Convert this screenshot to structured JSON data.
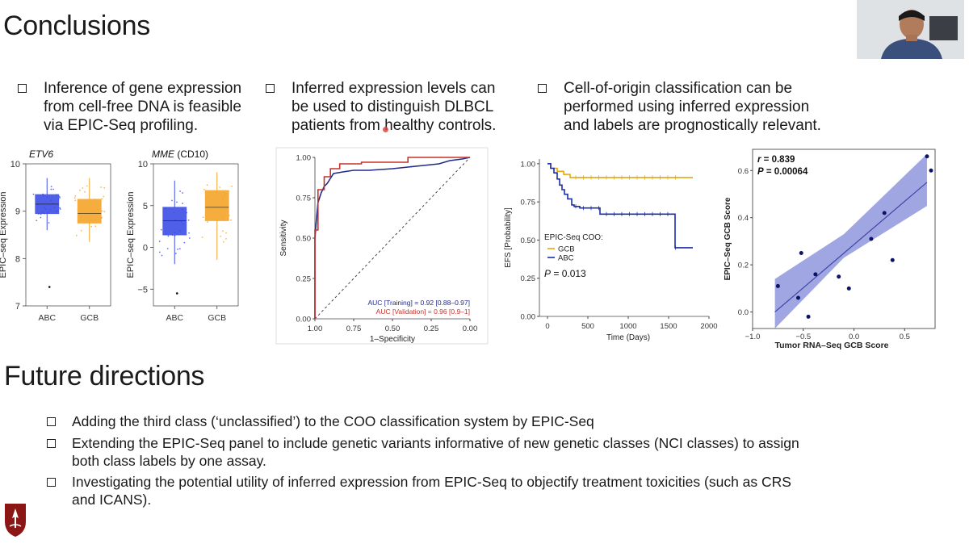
{
  "title": "Conclusions",
  "top_bullets": [
    "Inference of gene expression from cell-free DNA is feasible via EPIC-Seq profiling.",
    "Inferred expression levels can be used to distinguish DLBCL patients from healthy controls.",
    "Cell-of-origin classification can be performed using inferred expression and labels are prognostically relevant."
  ],
  "top_bullet_lines": [
    [
      "Inference of gene expression",
      "from cell-free DNA is feasible",
      "via EPIC-Seq profiling."
    ],
    [
      "Inferred expression levels can",
      "be used to distinguish DLBCL",
      "patients from healthy controls."
    ],
    [
      "Cell-of-origin classification can be",
      "performed using inferred expression",
      "and labels are prognostically relevant."
    ]
  ],
  "future_title": "Future directions",
  "future_bullets": [
    [
      "Adding the third class (‘unclassified’) to the COO classification system by EPIC-Seq"
    ],
    [
      "Extending the EPIC-Seq panel to include genetic variants informative of new genetic classes (NCI classes) to assign",
      "both class labels by one assay."
    ],
    [
      "Investigating the potential utility of inferred expression from EPIC-Seq to objectify treatment toxicities (such as CRS",
      "and ICANS)."
    ]
  ],
  "chart_data": [
    {
      "type": "box",
      "title_gene": "ETV6",
      "title_suffix": "",
      "ylabel": "EPIC–seq Expression",
      "categories": [
        "ABC",
        "GCB"
      ],
      "yticks": [
        7,
        8,
        9,
        10
      ],
      "ylim": [
        7,
        10
      ],
      "boxes": [
        {
          "name": "ABC",
          "color": "#3d4ee6",
          "q1": 8.95,
          "median": 9.15,
          "q3": 9.35,
          "wlo": 8.6,
          "whi": 9.7,
          "outliers": [
            7.4
          ]
        },
        {
          "name": "GCB",
          "color": "#f5a62a",
          "q1": 8.75,
          "median": 8.95,
          "q3": 9.25,
          "wlo": 8.35,
          "whi": 9.7,
          "outliers": []
        }
      ]
    },
    {
      "type": "box",
      "title_gene": "MME",
      "title_suffix": " (CD10)",
      "ylabel": "EPIC–seq Expression",
      "categories": [
        "ABC",
        "GCB"
      ],
      "yticks": [
        -5,
        0,
        5,
        10
      ],
      "ylim": [
        -7,
        10
      ],
      "boxes": [
        {
          "name": "ABC",
          "color": "#3d4ee6",
          "q1": 1.5,
          "median": 3.2,
          "q3": 4.8,
          "wlo": -2,
          "whi": 8,
          "outliers": [
            -5.5
          ]
        },
        {
          "name": "GCB",
          "color": "#f5a62a",
          "q1": 3.2,
          "median": 4.8,
          "q3": 6.8,
          "wlo": -1.5,
          "whi": 9,
          "outliers": []
        }
      ]
    },
    {
      "type": "roc",
      "xlabel": "1–Specificity",
      "ylabel": "Sensitivity",
      "xticks": [
        "1.00",
        "0.75",
        "0.50",
        "0.25",
        "0.00"
      ],
      "yticks": [
        "0.00",
        "0.25",
        "0.50",
        "0.75",
        "1.00"
      ],
      "series": [
        {
          "name": "AUC [Training] = 0.92 [0.88–0.97]",
          "color": "#1f2a8a",
          "fpr": [
            0,
            0,
            0.01,
            0.02,
            0.04,
            0.06,
            0.08,
            0.1,
            0.12,
            0.18,
            0.25,
            0.35,
            0.5,
            0.6,
            0.7,
            0.8,
            0.87,
            0.95,
            1
          ],
          "tpr": [
            0,
            0.5,
            0.62,
            0.72,
            0.78,
            0.82,
            0.84,
            0.87,
            0.9,
            0.91,
            0.92,
            0.92,
            0.93,
            0.94,
            0.95,
            0.96,
            0.98,
            0.99,
            1
          ]
        },
        {
          "name": "AUC [Validation] = 0.96 [0.9–1]",
          "color": "#c8322c",
          "fpr": [
            0,
            0,
            0.02,
            0.02,
            0.06,
            0.06,
            0.1,
            0.1,
            0.16,
            0.16,
            0.3,
            0.3,
            0.6,
            0.6,
            0.95,
            1
          ],
          "tpr": [
            0,
            0.55,
            0.55,
            0.8,
            0.8,
            0.88,
            0.88,
            0.93,
            0.93,
            0.96,
            0.96,
            0.97,
            0.97,
            1,
            1,
            1
          ]
        }
      ]
    },
    {
      "type": "survival",
      "xlabel": "Time (Days)",
      "ylabel": "EFS [Probability]",
      "xticks": [
        0,
        500,
        1000,
        1500,
        2000
      ],
      "yticks": [
        "0.00",
        "0.25",
        "0.50",
        "0.75",
        "1.00"
      ],
      "legend_title": "EPIC-Seq COO:",
      "p_label": "P",
      "p_value": " = 0.013",
      "series": [
        {
          "name": "GCB",
          "color": "#e3a812",
          "t": [
            0,
            40,
            120,
            200,
            280,
            1800
          ],
          "s": [
            1,
            0.97,
            0.95,
            0.93,
            0.91,
            0.91
          ]
        },
        {
          "name": "ABC",
          "color": "#1b2fa6",
          "t": [
            0,
            40,
            80,
            120,
            150,
            180,
            210,
            250,
            300,
            330,
            400,
            650,
            1580,
            1800
          ],
          "s": [
            1,
            0.97,
            0.94,
            0.9,
            0.86,
            0.83,
            0.8,
            0.77,
            0.73,
            0.72,
            0.71,
            0.67,
            0.45,
            0.45
          ]
        }
      ]
    },
    {
      "type": "scatter",
      "xlabel": "Tumor RNA–Seq GCB Score",
      "ylabel": "EPIC–Seq GCB Score",
      "xticks": [
        -1.0,
        -0.5,
        0.0,
        0.5
      ],
      "xtick_labels": [
        "−1.0",
        "−0.5",
        "0.0",
        "0.5"
      ],
      "yticks": [
        0.0,
        0.2,
        0.4,
        0.6
      ],
      "ylim": [
        -0.07,
        0.69
      ],
      "xlim": [
        -1.0,
        0.8
      ],
      "r_label": "r",
      "r_value": " = 0.839",
      "p_label": "P",
      "p_value": " = 0.00064",
      "points": [
        [
          -0.75,
          0.11
        ],
        [
          -0.55,
          0.06
        ],
        [
          -0.52,
          0.25
        ],
        [
          -0.45,
          -0.02
        ],
        [
          -0.38,
          0.16
        ],
        [
          -0.15,
          0.15
        ],
        [
          -0.05,
          0.1
        ],
        [
          0.17,
          0.31
        ],
        [
          0.3,
          0.42
        ],
        [
          0.38,
          0.22
        ],
        [
          0.72,
          0.66
        ],
        [
          0.76,
          0.6
        ]
      ],
      "fit": {
        "x0": -0.78,
        "y0": 0.0,
        "x1": 0.72,
        "y1": 0.55
      },
      "band_color": "#8088d8",
      "point_color": "#0b1466"
    }
  ],
  "colors": {
    "accent": "#c8322c",
    "pointer": "#e24343"
  }
}
